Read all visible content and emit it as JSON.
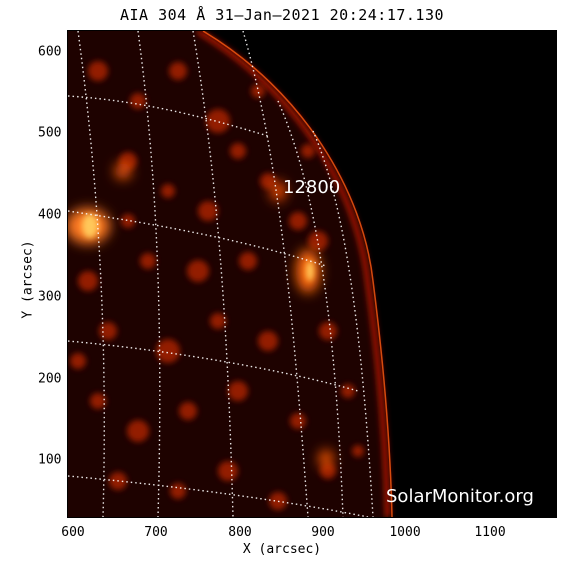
{
  "title": "AIA 304 Å 31–Jan–2021 20:24:17.130",
  "xlabel": "X (arcsec)",
  "ylabel": "Y (arcsec)",
  "x_ticks": [
    "600",
    "700",
    "800",
    "900",
    "1000",
    "1100"
  ],
  "y_ticks": [
    "600",
    "500",
    "400",
    "300",
    "200",
    "100"
  ],
  "region_label": "12800",
  "watermark": "SolarMonitor.org"
}
